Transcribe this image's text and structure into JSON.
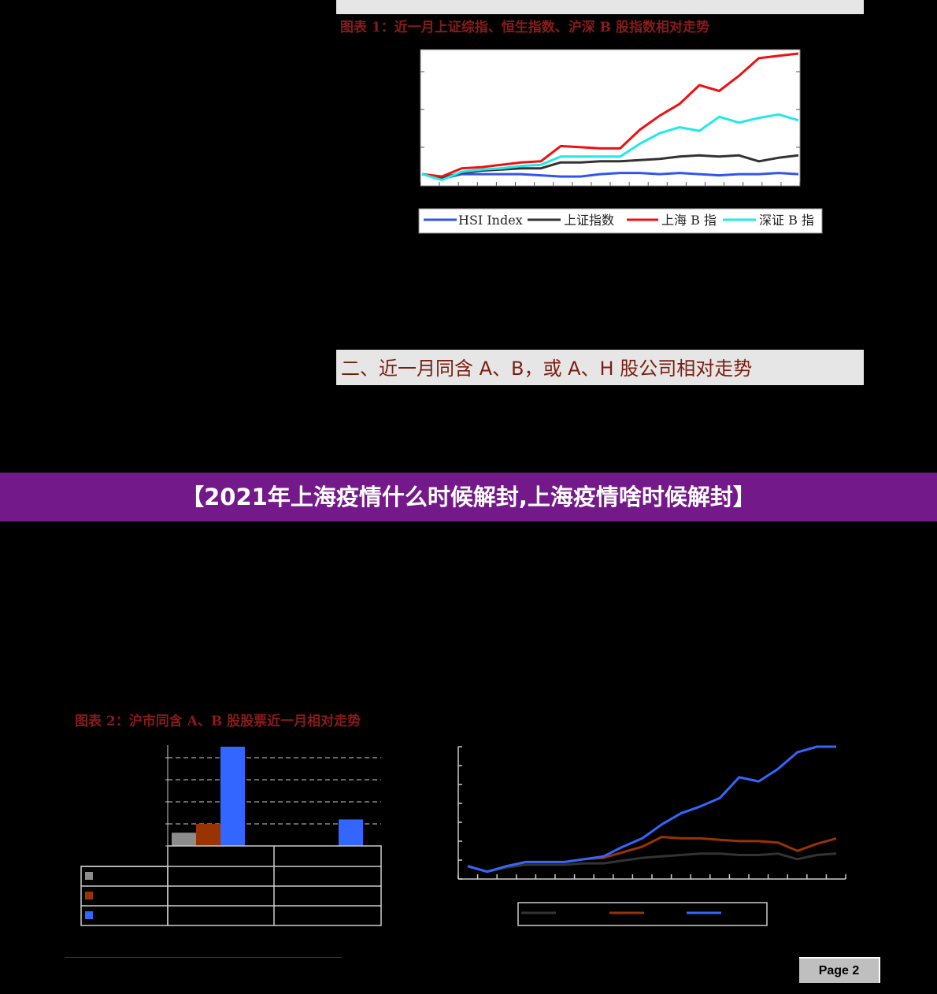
{
  "section1": {
    "caption": "图表 1：近一月上证综指、恒生指数、沪深 B 股指数相对走势"
  },
  "section2": {
    "title": "二、近一月同含 A、B，或 A、H 股公司相对走势"
  },
  "banner": {
    "text": "【2021年上海疫情什么时候解封,上海疫情啥时候解封】"
  },
  "section3": {
    "caption": "图表 2：沪市同含 A、B 股股票近一月相对走势"
  },
  "page_label": "Page 2",
  "colors": {
    "hsi": "#3355ee",
    "sse": "#333333",
    "shb": "#ee1111",
    "szb": "#22e8e8",
    "grey": "#8c8c8c",
    "brown": "#993300",
    "blue": "#3366ff",
    "caption": "#8b1a1a"
  },
  "chart_data": [
    {
      "type": "line",
      "series": [
        {
          "name": "HSI  Index",
          "values": [
            1.0,
            0.96,
            1.0,
            1.0,
            1.0,
            1.0,
            0.99,
            0.98,
            0.98,
            1.0,
            1.01,
            1.01,
            1.0,
            1.01,
            1.0,
            0.99,
            1.0,
            1.0,
            1.01,
            1.0
          ]
        },
        {
          "name": "上证指数",
          "values": [
            1.0,
            0.97,
            1.01,
            1.03,
            1.04,
            1.05,
            1.05,
            1.1,
            1.1,
            1.11,
            1.11,
            1.12,
            1.13,
            1.15,
            1.16,
            1.15,
            1.16,
            1.11,
            1.14,
            1.16
          ]
        },
        {
          "name": "上海 B 指",
          "values": [
            1.0,
            0.98,
            1.05,
            1.06,
            1.08,
            1.1,
            1.11,
            1.24,
            1.23,
            1.22,
            1.22,
            1.38,
            1.5,
            1.6,
            1.76,
            1.71,
            1.84,
            1.99,
            2.01,
            2.03
          ]
        },
        {
          "name": "深证 B 指",
          "values": [
            1.0,
            0.95,
            1.02,
            1.04,
            1.05,
            1.07,
            1.08,
            1.15,
            1.15,
            1.15,
            1.15,
            1.26,
            1.35,
            1.4,
            1.37,
            1.49,
            1.44,
            1.48,
            1.51,
            1.46
          ]
        }
      ]
    },
    {
      "type": "bar",
      "categories": [
        "",
        ""
      ],
      "series": [
        {
          "name": "",
          "values": [
            0.6,
            0
          ]
        },
        {
          "name": "",
          "values": [
            1.0,
            0
          ]
        },
        {
          "name": "",
          "values": [
            4.5,
            1.2
          ]
        }
      ],
      "ylim": [
        0,
        4.5
      ]
    },
    {
      "type": "line",
      "series": [
        {
          "name": "",
          "values": [
            1.0,
            0.96,
            0.99,
            1.01,
            1.01,
            1.01,
            1.02,
            1.02,
            1.04,
            1.06,
            1.07,
            1.08,
            1.09,
            1.09,
            1.08,
            1.08,
            1.09,
            1.05,
            1.08,
            1.09
          ]
        },
        {
          "name": "",
          "values": [
            1.0,
            0.96,
            1.0,
            1.03,
            1.03,
            1.03,
            1.05,
            1.06,
            1.1,
            1.14,
            1.21,
            1.2,
            1.2,
            1.19,
            1.18,
            1.18,
            1.17,
            1.11,
            1.16,
            1.2
          ]
        },
        {
          "name": "",
          "values": [
            1.0,
            0.96,
            1.0,
            1.03,
            1.03,
            1.03,
            1.05,
            1.07,
            1.14,
            1.2,
            1.3,
            1.38,
            1.43,
            1.49,
            1.64,
            1.61,
            1.7,
            1.82,
            1.86,
            1.86
          ]
        }
      ]
    }
  ]
}
